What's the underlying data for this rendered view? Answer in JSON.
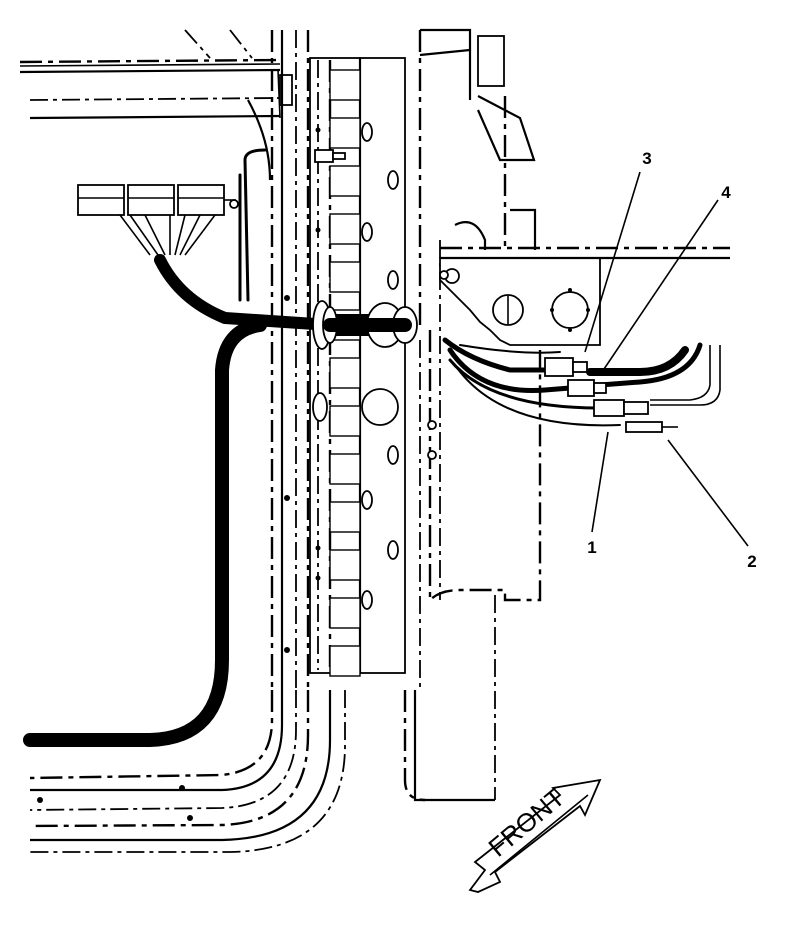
{
  "diagram": {
    "callouts": [
      {
        "id": "1",
        "label": "1"
      },
      {
        "id": "2",
        "label": "2"
      },
      {
        "id": "3",
        "label": "3"
      },
      {
        "id": "4",
        "label": "4"
      }
    ],
    "direction_label": "FRONT"
  }
}
